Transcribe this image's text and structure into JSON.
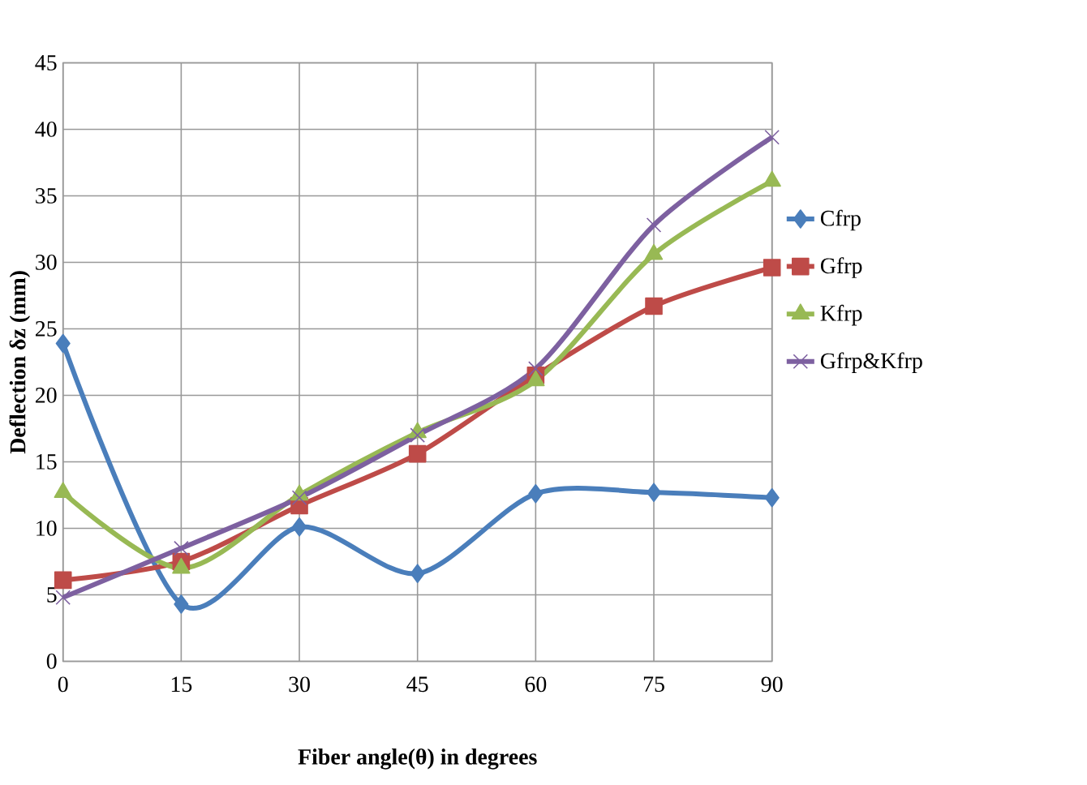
{
  "chart_data": {
    "type": "line",
    "xlabel": "Fiber angle(θ) in degrees",
    "ylabel": "Deflection δz  (mm)",
    "x": [
      0,
      15,
      30,
      45,
      60,
      75,
      90
    ],
    "xlim": [
      0,
      90
    ],
    "xticks": [
      0,
      15,
      30,
      45,
      60,
      75,
      90
    ],
    "ylim": [
      0,
      45
    ],
    "yticks": [
      0,
      5,
      10,
      15,
      20,
      25,
      30,
      35,
      40,
      45
    ],
    "grid": true,
    "legend": "right",
    "series": [
      {
        "name": "Cfrp",
        "color": "#4a7ebb",
        "marker": "diamond",
        "values": [
          23.9,
          4.3,
          10.1,
          6.6,
          12.6,
          12.7,
          12.3
        ]
      },
      {
        "name": "Gfrp",
        "color": "#be4b48",
        "marker": "square",
        "values": [
          6.1,
          7.5,
          11.7,
          15.6,
          21.5,
          26.7,
          29.6
        ]
      },
      {
        "name": "Kfrp",
        "color": "#98b954",
        "marker": "triangle",
        "values": [
          12.7,
          7.0,
          12.5,
          17.2,
          21.1,
          30.6,
          36.1
        ]
      },
      {
        "name": "Gfrp&Kfrp",
        "color": "#7d60a0",
        "marker": "cross",
        "values": [
          4.8,
          8.5,
          12.3,
          17.0,
          22.0,
          32.8,
          39.4
        ]
      }
    ]
  }
}
